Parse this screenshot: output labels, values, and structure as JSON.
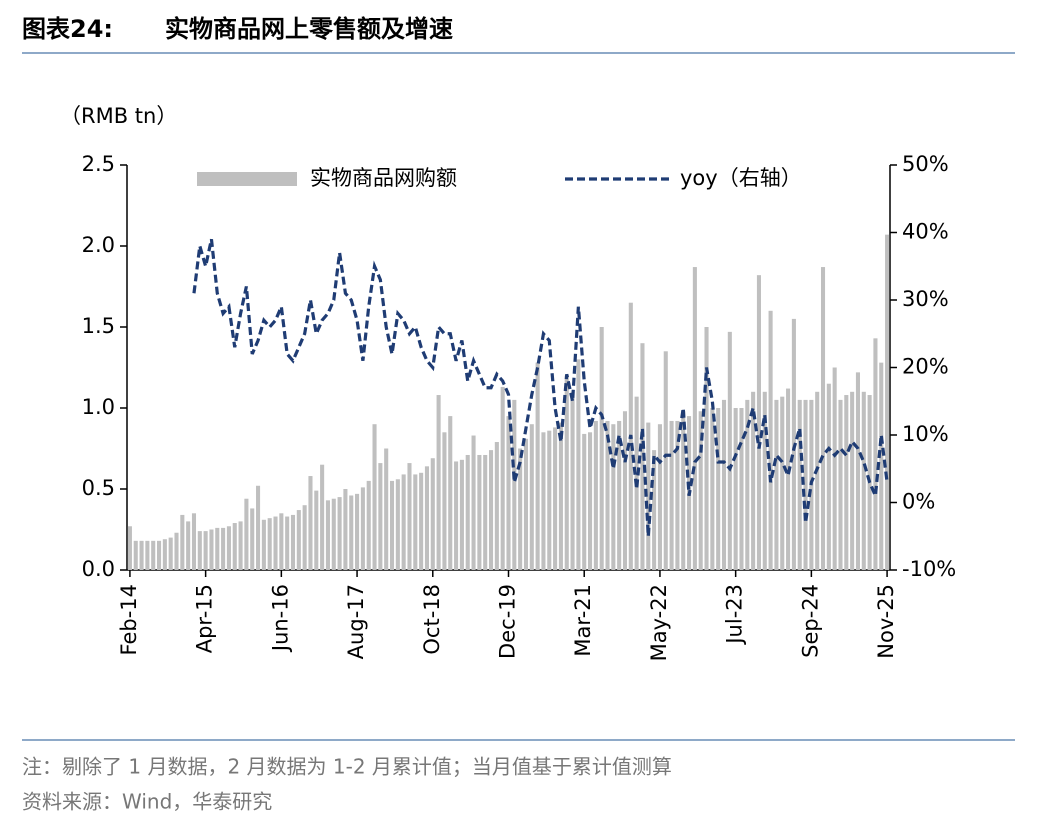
{
  "chart_data": {
    "type": "bar_line",
    "figure_label": "图表24:",
    "title": "实物商品网上零售额及增速",
    "y_label": "（RMB tn）",
    "categories": [
      "Feb-14",
      null,
      null,
      null,
      null,
      null,
      null,
      null,
      null,
      null,
      null,
      null,
      null,
      "Apr-15",
      null,
      null,
      null,
      null,
      null,
      null,
      null,
      null,
      null,
      null,
      null,
      null,
      "Jun-16",
      null,
      null,
      null,
      null,
      null,
      null,
      null,
      null,
      null,
      null,
      null,
      null,
      "Aug-17",
      null,
      null,
      null,
      null,
      null,
      null,
      null,
      null,
      null,
      null,
      null,
      null,
      "Oct-18",
      null,
      null,
      null,
      null,
      null,
      null,
      null,
      null,
      null,
      null,
      null,
      null,
      "Dec-19",
      null,
      null,
      null,
      null,
      null,
      null,
      null,
      null,
      null,
      null,
      null,
      null,
      "Mar-21",
      null,
      null,
      null,
      null,
      null,
      null,
      null,
      null,
      null,
      null,
      null,
      null,
      "May-22",
      null,
      null,
      null,
      null,
      null,
      null,
      null,
      null,
      null,
      null,
      null,
      null,
      "Jul-23",
      null,
      null,
      null,
      null,
      null,
      null,
      null,
      null,
      null,
      null,
      null,
      null,
      "Sep-24",
      null,
      null,
      null,
      null,
      null,
      null,
      null,
      null,
      null,
      null,
      null,
      null,
      "Nov-25"
    ],
    "series": [
      {
        "name": "实物商品网购额",
        "type": "bar",
        "color": "#bfbfbf",
        "axis": "y",
        "values": [
          0.27,
          0.18,
          0.18,
          0.18,
          0.18,
          0.18,
          0.19,
          0.2,
          0.23,
          0.34,
          0.3,
          0.35,
          0.24,
          0.24,
          0.25,
          0.26,
          0.26,
          0.27,
          0.29,
          0.3,
          0.44,
          0.38,
          0.52,
          0.31,
          0.32,
          0.33,
          0.35,
          0.33,
          0.34,
          0.37,
          0.4,
          0.58,
          0.49,
          0.65,
          0.43,
          0.44,
          0.45,
          0.5,
          0.46,
          0.47,
          0.51,
          0.55,
          0.9,
          0.66,
          0.75,
          0.55,
          0.56,
          0.59,
          0.66,
          0.59,
          0.6,
          0.64,
          0.69,
          1.08,
          0.85,
          0.95,
          0.67,
          0.68,
          0.71,
          0.83,
          0.71,
          0.71,
          0.74,
          0.79,
          1.13,
          0.95,
          1.05,
          0.75,
          0.81,
          0.9,
          1.28,
          0.85,
          0.86,
          0.88,
          0.91,
          1.2,
          1.1,
          1.3,
          0.84,
          0.85,
          0.92,
          1.5,
          0.92,
          0.9,
          0.92,
          0.98,
          1.65,
          1.07,
          1.4,
          0.91,
          0.74,
          0.9,
          1.35,
          0.92,
          0.92,
          0.98,
          0.95,
          1.87,
          0.98,
          1.5,
          1.0,
          1.0,
          1.05,
          1.47,
          1.0,
          1.0,
          1.05,
          1.1,
          1.82,
          1.1,
          1.6,
          1.05,
          1.07,
          1.12,
          1.55,
          1.05,
          1.05,
          1.05,
          1.1,
          1.87,
          1.15,
          1.25,
          1.05,
          1.08,
          1.1,
          1.22,
          1.1,
          1.08,
          1.43,
          1.28,
          2.07
        ]
      },
      {
        "name": "yoy（右轴）",
        "type": "line",
        "color": "#1f3c74",
        "axis": "y2",
        "values": [
          null,
          null,
          null,
          null,
          null,
          null,
          null,
          null,
          null,
          null,
          null,
          31,
          38,
          35,
          39,
          31,
          28,
          29,
          23,
          28,
          32,
          22,
          24,
          27,
          26,
          27,
          29,
          22,
          21,
          23,
          25,
          30,
          25,
          27,
          28,
          30,
          37,
          31,
          30,
          27,
          21,
          29,
          35,
          33,
          26,
          22,
          28,
          27,
          25,
          26,
          23,
          21,
          20,
          26,
          25,
          25,
          21,
          24,
          18,
          21,
          19,
          17,
          17,
          19,
          18,
          16,
          3,
          6,
          11,
          16,
          20,
          25,
          24,
          14,
          9,
          19,
          15,
          29,
          18,
          11,
          14,
          13,
          10,
          5,
          10,
          6,
          10,
          2,
          11,
          -5,
          7,
          6,
          7,
          7,
          8,
          14,
          1,
          6,
          7,
          20,
          15,
          6,
          6,
          5,
          7,
          9,
          11,
          14,
          8,
          13,
          3,
          7,
          6,
          4,
          8,
          11,
          -3,
          3,
          5,
          7,
          8,
          7,
          8,
          7,
          9,
          8,
          6,
          3,
          1,
          10,
          3
        ]
      }
    ],
    "ylim": [
      0,
      2.5
    ],
    "yticks": [
      {
        "value": 0,
        "label": "0.0"
      },
      0.5,
      {
        "value": 1,
        "label": "1.0"
      },
      1.5,
      {
        "value": 2,
        "label": "2.0"
      },
      2.5
    ],
    "y2lim": [
      -10,
      50
    ],
    "y2ticks": [
      {
        "value": -10,
        "label": "-10%"
      },
      {
        "value": 0,
        "label": "0%"
      },
      {
        "value": 10,
        "label": "10%"
      },
      {
        "value": 20,
        "label": "20%"
      },
      {
        "value": 30,
        "label": "30%"
      },
      {
        "value": 40,
        "label": "40%"
      },
      {
        "value": 50,
        "label": "50%"
      }
    ],
    "legend": "top",
    "grid": false,
    "notes": [
      "注：剔除了 1 月数据，2 月数据为 1-2 月累计值；当月值基于累计值测算",
      "资料来源：Wind，华泰研究"
    ]
  }
}
